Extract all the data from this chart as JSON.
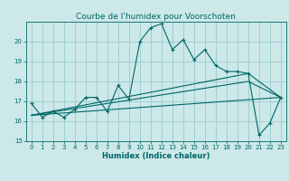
{
  "title": "Courbe de l'humidex pour Voorschoten",
  "xlabel": "Humidex (Indice chaleur)",
  "bg_color": "#cce8e8",
  "grid_color": "#99cccc",
  "line_color": "#006666",
  "xlim": [
    -0.5,
    23.5
  ],
  "ylim": [
    15,
    21
  ],
  "yticks": [
    15,
    16,
    17,
    18,
    19,
    20
  ],
  "xticks": [
    0,
    1,
    2,
    3,
    4,
    5,
    6,
    7,
    8,
    9,
    10,
    11,
    12,
    13,
    14,
    15,
    16,
    17,
    18,
    19,
    20,
    21,
    22,
    23
  ],
  "line1_x": [
    0,
    1,
    2,
    3,
    4,
    5,
    6,
    7,
    8,
    9,
    10,
    11,
    12,
    13,
    14,
    15,
    16,
    17,
    18,
    19,
    20,
    21,
    22,
    23
  ],
  "line1_y": [
    16.9,
    16.2,
    16.5,
    16.2,
    16.6,
    17.2,
    17.2,
    16.5,
    17.8,
    17.1,
    20.0,
    20.7,
    20.9,
    19.6,
    20.1,
    19.1,
    19.6,
    18.8,
    18.5,
    18.5,
    18.4,
    15.3,
    15.9,
    17.2
  ],
  "line2_x": [
    0,
    20,
    23
  ],
  "line2_y": [
    16.3,
    18.4,
    17.2
  ],
  "line3_x": [
    0,
    20,
    23
  ],
  "line3_y": [
    16.3,
    18.0,
    17.2
  ],
  "line4_x": [
    0,
    23
  ],
  "line4_y": [
    16.3,
    17.2
  ],
  "tick_fontsize": 5.0,
  "xlabel_fontsize": 6.0,
  "title_fontsize": 6.5
}
